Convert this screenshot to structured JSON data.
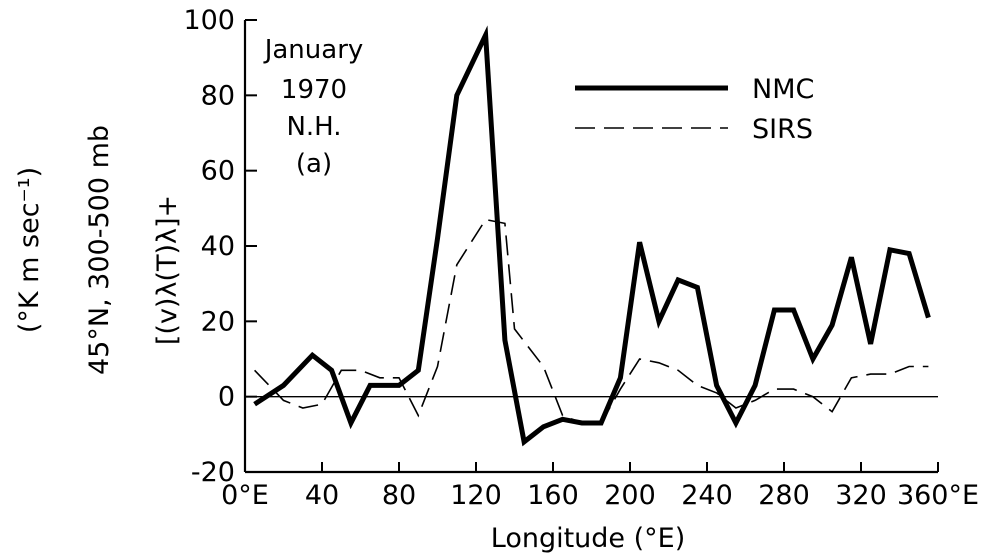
{
  "chart_data": {
    "type": "line",
    "title": "",
    "xlabel": "Longitude (°E)",
    "ylabel": "[(v)λ(T)λ]+",
    "ylabel_outer": "45°N,  300-500 mb",
    "ylabel_units": "(°K m sec⁻¹)",
    "annotation": [
      "January",
      "1970",
      "N.H.",
      "(a)"
    ],
    "xlim": [
      0,
      360
    ],
    "ylim": [
      -20,
      100
    ],
    "x_ticks": [
      0,
      40,
      80,
      120,
      160,
      200,
      240,
      280,
      320,
      360
    ],
    "x_tick_labels": [
      "0°E",
      "40",
      "80",
      "120",
      "160",
      "200",
      "240",
      "280",
      "320",
      "360°E"
    ],
    "y_ticks": [
      -20,
      0,
      20,
      40,
      60,
      80,
      100
    ],
    "y_tick_labels": [
      "-20",
      "0",
      "20",
      "40",
      "60",
      "80",
      "100"
    ],
    "zero_line": true,
    "grid": false,
    "legend_position": "top-right",
    "series": [
      {
        "name": "NMC",
        "style": "solid-thick",
        "x": [
          5,
          20,
          35,
          45,
          55,
          65,
          80,
          90,
          100,
          110,
          125,
          135,
          145,
          155,
          165,
          175,
          185,
          195,
          205,
          215,
          225,
          235,
          245,
          255,
          265,
          275,
          285,
          295,
          305,
          315,
          325,
          335,
          345,
          355
        ],
        "y": [
          -2,
          3,
          11,
          7,
          -7,
          3,
          3,
          7,
          42,
          80,
          96,
          15,
          -12,
          -8,
          -6,
          -7,
          -7,
          5,
          41,
          20,
          31,
          29,
          3,
          -7,
          3,
          23,
          23,
          10,
          19,
          37,
          14,
          39,
          38,
          21
        ]
      },
      {
        "name": "SIRS",
        "style": "dashed-thin",
        "x": [
          5,
          20,
          30,
          40,
          50,
          60,
          70,
          80,
          90,
          100,
          110,
          125,
          135,
          140,
          155,
          165,
          175,
          185,
          195,
          205,
          215,
          225,
          235,
          245,
          255,
          265,
          275,
          285,
          295,
          305,
          315,
          325,
          335,
          345,
          355
        ],
        "y": [
          7,
          -1,
          -3,
          -2,
          7,
          7,
          5,
          5,
          -5,
          8,
          35,
          47,
          46,
          18,
          8,
          -5,
          -7,
          -7,
          2,
          10,
          9,
          7,
          3,
          1,
          -3,
          -1,
          2,
          2,
          0,
          -4,
          5,
          6,
          6,
          8,
          8
        ]
      }
    ]
  }
}
